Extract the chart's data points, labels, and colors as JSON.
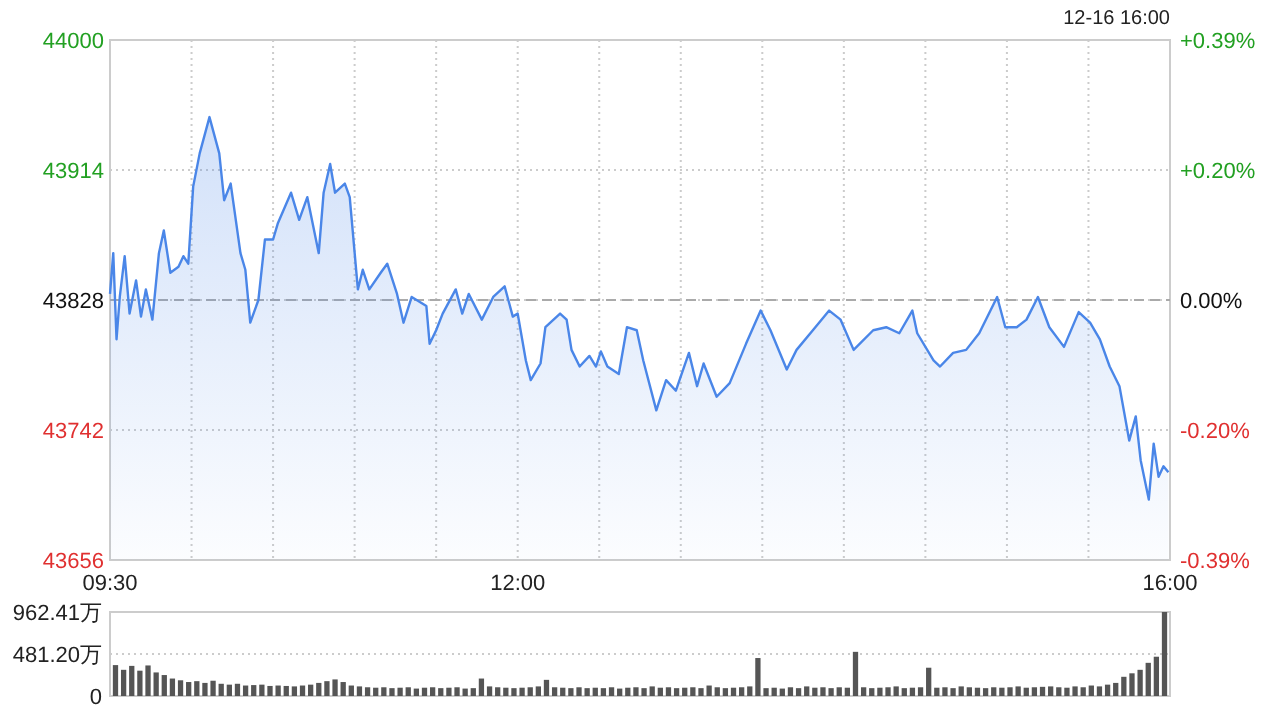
{
  "chart_data": [
    {
      "type": "area",
      "annotations": [
        "12-16 16:00"
      ],
      "color": "#4a86e8",
      "x": [
        9.5,
        9.52,
        9.54,
        9.56,
        9.59,
        9.62,
        9.66,
        9.69,
        9.72,
        9.76,
        9.8,
        9.83,
        9.87,
        9.92,
        9.95,
        9.98,
        10.01,
        10.05,
        10.11,
        10.17,
        10.2,
        10.24,
        10.3,
        10.33,
        10.36,
        10.41,
        10.45,
        10.5,
        10.53,
        10.61,
        10.66,
        10.71,
        10.78,
        10.81,
        10.85,
        10.88,
        10.94,
        10.97,
        11.02,
        11.05,
        11.09,
        11.16,
        11.2,
        11.26,
        11.3,
        11.35,
        11.44,
        11.46,
        11.5,
        11.54,
        11.62,
        11.66,
        11.7,
        11.78,
        11.85,
        11.92,
        11.97,
        12.0,
        12.05,
        12.08,
        12.14,
        12.17,
        12.26,
        12.3,
        12.33,
        12.38,
        12.44,
        12.48,
        12.51,
        12.55,
        12.62,
        12.67,
        12.73,
        12.77,
        12.85,
        12.91,
        12.97,
        13.05,
        13.1,
        13.14,
        13.22,
        13.3,
        13.4,
        13.49,
        13.55,
        13.65,
        13.71,
        13.81,
        13.91,
        13.98,
        14.06,
        14.18,
        14.26,
        14.34,
        14.42,
        14.45,
        14.55,
        14.59,
        14.67,
        14.75,
        14.83,
        14.94,
        14.99,
        15.06,
        15.12,
        15.19,
        15.26,
        15.35,
        15.44,
        15.51,
        15.57,
        15.63,
        15.69,
        15.75,
        15.79,
        15.82,
        15.87,
        15.9,
        15.93,
        15.96,
        15.99
      ],
      "values": [
        43832,
        43859,
        43802,
        43830,
        43857,
        43819,
        43841,
        43817,
        43835,
        43815,
        43859,
        43874,
        43846,
        43850,
        43857,
        43852,
        43903,
        43925,
        43949,
        43925,
        43894,
        43905,
        43859,
        43848,
        43813,
        43828,
        43868,
        43868,
        43879,
        43899,
        43881,
        43896,
        43859,
        43899,
        43918,
        43899,
        43905,
        43896,
        43835,
        43848,
        43835,
        43846,
        43852,
        43832,
        43813,
        43830,
        43824,
        43799,
        43808,
        43819,
        43835,
        43819,
        43832,
        43815,
        43830,
        43837,
        43817,
        43819,
        43788,
        43775,
        43786,
        43810,
        43819,
        43815,
        43795,
        43784,
        43791,
        43784,
        43794,
        43784,
        43779,
        43810,
        43808,
        43788,
        43755,
        43775,
        43768,
        43793,
        43771,
        43786,
        43764,
        43773,
        43799,
        43821,
        43808,
        43782,
        43795,
        43808,
        43821,
        43815,
        43795,
        43808,
        43810,
        43806,
        43821,
        43806,
        43788,
        43784,
        43793,
        43795,
        43806,
        43830,
        43810,
        43810,
        43815,
        43830,
        43810,
        43797,
        43820,
        43813,
        43802,
        43784,
        43771,
        43735,
        43751,
        43722,
        43696,
        43733,
        43711,
        43718,
        43714
      ],
      "xlim": [
        9.5,
        16
      ],
      "xticks": [
        {
          "value": 9.5,
          "label": "09:30"
        },
        {
          "value": 10,
          "label": null
        },
        {
          "value": 10.5,
          "label": null
        },
        {
          "value": 11,
          "label": null
        },
        {
          "value": 11.5,
          "label": null
        },
        {
          "value": 12,
          "label": "12:00"
        },
        {
          "value": 12.5,
          "label": null
        },
        {
          "value": 13,
          "label": null
        },
        {
          "value": 13.5,
          "label": null
        },
        {
          "value": 14,
          "label": null
        },
        {
          "value": 14.5,
          "label": null
        },
        {
          "value": 15,
          "label": null
        },
        {
          "value": 15.5,
          "label": null
        },
        {
          "value": 16,
          "label": "16:00"
        }
      ],
      "ylim": [
        43656,
        44000
      ],
      "yticks": [
        43656,
        43742,
        43828,
        43914,
        44000
      ],
      "y2lim": [
        -0.392,
        0.392
      ],
      "y2ticks": [
        {
          "value": -0.392,
          "label": "-0.39%"
        },
        {
          "value": -0.196,
          "label": "-0.20%"
        },
        {
          "value": 0,
          "label": "0.00%"
        },
        {
          "value": 0.196,
          "label": "+0.20%"
        },
        {
          "value": 0.392,
          "label": "+0.39%"
        }
      ],
      "ref_lines": [
        {
          "axis": "y",
          "value": 43828,
          "color": "#aaaaaa",
          "line_style": "dashed"
        }
      ],
      "grid": true
    },
    {
      "type": "bar",
      "color": "#555555",
      "tick_labels": "y",
      "grid": "y",
      "categories": [
        null,
        null,
        null,
        null,
        null,
        null,
        null,
        null,
        null,
        null,
        null,
        null,
        null,
        null,
        null,
        null,
        null,
        null,
        null,
        null,
        null,
        null,
        null,
        null,
        null,
        null,
        null,
        null,
        null,
        null,
        null,
        null,
        null,
        null,
        null,
        null,
        null,
        null,
        null,
        null,
        null,
        null,
        null,
        null,
        null,
        null,
        null,
        null,
        null,
        null,
        null,
        null,
        null,
        null,
        null,
        null,
        null,
        null,
        null,
        null,
        null,
        null,
        null,
        null,
        null,
        null,
        null,
        null,
        null,
        null,
        null,
        null,
        null,
        null,
        null,
        null,
        null,
        null,
        null,
        null,
        null,
        null,
        null,
        null,
        null,
        null,
        null,
        null,
        null,
        null,
        null,
        null,
        null,
        null,
        null,
        null,
        null,
        null,
        null,
        null,
        null,
        null,
        null,
        null,
        null,
        null,
        null,
        null,
        null,
        null,
        null,
        null,
        null,
        null,
        null,
        null,
        null,
        null,
        null,
        null,
        null,
        null,
        null,
        null,
        null,
        null,
        null,
        null,
        null,
        null
      ],
      "values": [
        354,
        300,
        345,
        290,
        350,
        270,
        240,
        200,
        180,
        160,
        170,
        150,
        175,
        140,
        130,
        140,
        120,
        125,
        130,
        115,
        120,
        115,
        110,
        120,
        130,
        150,
        170,
        190,
        160,
        120,
        110,
        100,
        95,
        100,
        90,
        95,
        100,
        85,
        95,
        100,
        90,
        95,
        100,
        85,
        90,
        200,
        110,
        100,
        95,
        90,
        95,
        100,
        110,
        185,
        100,
        95,
        90,
        100,
        90,
        95,
        90,
        100,
        85,
        95,
        100,
        90,
        110,
        95,
        100,
        90,
        95,
        100,
        90,
        120,
        100,
        90,
        95,
        100,
        110,
        435,
        90,
        95,
        85,
        100,
        90,
        110,
        95,
        100,
        90,
        100,
        95,
        506,
        100,
        90,
        95,
        100,
        110,
        90,
        95,
        100,
        324,
        95,
        100,
        90,
        110,
        100,
        95,
        90,
        100,
        95,
        100,
        110,
        95,
        100,
        105,
        110,
        100,
        95,
        110,
        100,
        120,
        110,
        130,
        150,
        220,
        260,
        300,
        380,
        450,
        962.41
      ],
      "ylim": [
        0,
        962.41
      ],
      "yticks": [
        0,
        {
          "value": 481.2,
          "label": "481.20万"
        },
        {
          "value": 962.41,
          "label": "962.41万"
        }
      ]
    }
  ]
}
